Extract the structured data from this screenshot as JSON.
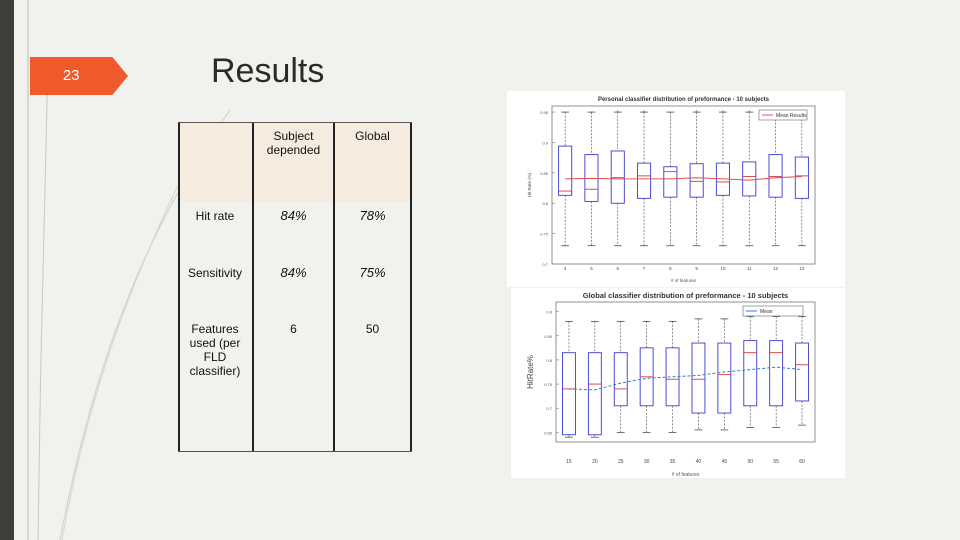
{
  "slide": {
    "number": "23",
    "title": "Results"
  },
  "table": {
    "headers": [
      "",
      "Subject depended",
      "Global"
    ],
    "rows": [
      {
        "label": "Hit rate",
        "subject": "84%",
        "global": "78%"
      },
      {
        "label": "Sensitivity",
        "subject": "84%",
        "global": "75%"
      },
      {
        "label": "Features used (per FLD classifier)",
        "subject": "6",
        "global": "50"
      }
    ]
  },
  "chart_data": [
    {
      "type": "box",
      "title": "Personal classifier distribution of preformance - 10 subjects",
      "xlabel": "# of features",
      "ylabel": "Hit Rate (%)",
      "legend": [
        "Mean Results"
      ],
      "legend_position": "top-right",
      "categories": [
        "4",
        "5",
        "6",
        "7",
        "8",
        "9",
        "10",
        "11",
        "12",
        "13"
      ],
      "yticks": [
        "0.7",
        "0.75",
        "0.8",
        "0.85",
        "0.9",
        "0.95"
      ],
      "ylim": [
        0.7,
        0.96
      ],
      "box_low": [
        0.813,
        0.803,
        0.8,
        0.808,
        0.81,
        0.81,
        0.813,
        0.812,
        0.81,
        0.808
      ],
      "box_high": [
        0.894,
        0.88,
        0.886,
        0.866,
        0.86,
        0.865,
        0.866,
        0.868,
        0.88,
        0.876
      ],
      "whisker_low": [
        0.73,
        0.73,
        0.73,
        0.73,
        0.73,
        0.73,
        0.73,
        0.73,
        0.73,
        0.73
      ],
      "whisker_high": [
        0.95,
        0.95,
        0.95,
        0.95,
        0.95,
        0.95,
        0.95,
        0.95,
        0.95,
        0.95
      ],
      "median": [
        0.82,
        0.823,
        0.842,
        0.845,
        0.852,
        0.836,
        0.835,
        0.844,
        0.844,
        0.845
      ],
      "mean": [
        0.84,
        0.841,
        0.84,
        0.84,
        0.84,
        0.842,
        0.84,
        0.838,
        0.842,
        0.844
      ],
      "outliers": [
        false,
        false,
        true,
        true,
        false,
        true,
        true,
        true,
        false,
        false
      ],
      "grid": false
    },
    {
      "type": "box",
      "title": "Global classifier distribution of preformance - 10 subjects",
      "xlabel": "# of features",
      "ylabel": "HitRate%",
      "legend": [
        "Mean"
      ],
      "legend_position": "top-right",
      "categories": [
        "15",
        "20",
        "25",
        "30",
        "35",
        "40",
        "45",
        "50",
        "55",
        "60"
      ],
      "yticks": [
        "0.65",
        "0.7",
        "0.75",
        "0.8",
        "0.85",
        "0.9"
      ],
      "ylim": [
        0.63,
        0.92
      ],
      "box_low": [
        0.645,
        0.645,
        0.705,
        0.705,
        0.705,
        0.69,
        0.69,
        0.705,
        0.705,
        0.715
      ],
      "box_high": [
        0.815,
        0.815,
        0.815,
        0.825,
        0.825,
        0.835,
        0.835,
        0.84,
        0.84,
        0.835
      ],
      "whisker_low": [
        0.64,
        0.64,
        0.65,
        0.65,
        0.65,
        0.655,
        0.655,
        0.66,
        0.66,
        0.665
      ],
      "whisker_high": [
        0.88,
        0.88,
        0.88,
        0.88,
        0.88,
        0.885,
        0.885,
        0.89,
        0.89,
        0.89
      ],
      "median": [
        0.74,
        0.75,
        0.74,
        0.765,
        0.76,
        0.76,
        0.77,
        0.815,
        0.815,
        0.79
      ],
      "mean": [
        0.74,
        0.738,
        0.752,
        0.762,
        0.765,
        0.768,
        0.775,
        0.78,
        0.785,
        0.78
      ],
      "grid": false
    }
  ],
  "colors": {
    "accent": "#ef5a2d",
    "sidebar": "#3e3f3a",
    "box_stroke": "#3b3bd0",
    "median": "#d63a3a",
    "mean_personal": "#e05050",
    "mean_global": "#2d7fd0"
  }
}
